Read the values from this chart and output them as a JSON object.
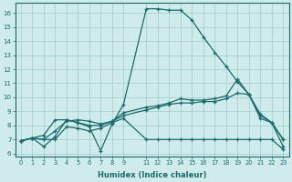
{
  "xlabel": "Humidex (Indice chaleur)",
  "xlim": [
    -0.5,
    23.5
  ],
  "ylim": [
    5.8,
    16.7
  ],
  "yticks": [
    6,
    7,
    8,
    9,
    10,
    11,
    12,
    13,
    14,
    15,
    16
  ],
  "xtick_positions": [
    0,
    1,
    2,
    3,
    4,
    5,
    6,
    7,
    8,
    9,
    11,
    12,
    13,
    14,
    15,
    16,
    17,
    18,
    19,
    20,
    21,
    22,
    23
  ],
  "xtick_labels": [
    "0",
    "1",
    "2",
    "3",
    "4",
    "5",
    "6",
    "7",
    "8",
    "9",
    "11",
    "12",
    "13",
    "14",
    "15",
    "16",
    "17",
    "18",
    "19",
    "20",
    "21",
    "22",
    "23"
  ],
  "bg_color": "#d0ebeb",
  "grid_color": "#a0cccc",
  "line_color": "#1a6b6b",
  "lines": [
    {
      "x": [
        0,
        1,
        2,
        3,
        4,
        5,
        6,
        7,
        8,
        9,
        11,
        12,
        13,
        14,
        15,
        16,
        17,
        18,
        19,
        20,
        21,
        22,
        23
      ],
      "y": [
        6.9,
        7.1,
        6.5,
        7.2,
        8.4,
        8.2,
        7.9,
        6.2,
        8.1,
        9.5,
        16.3,
        16.3,
        16.2,
        16.2,
        15.5,
        14.3,
        13.2,
        12.2,
        11.1,
        10.2,
        8.5,
        8.2,
        7.0
      ]
    },
    {
      "x": [
        0,
        1,
        2,
        3,
        4,
        5,
        6,
        7,
        8,
        9,
        11,
        12,
        13,
        14,
        15,
        16,
        17,
        18,
        19,
        20,
        21,
        22,
        23
      ],
      "y": [
        6.9,
        7.1,
        7.0,
        7.6,
        8.3,
        8.4,
        8.3,
        8.1,
        8.3,
        8.7,
        9.1,
        9.3,
        9.5,
        9.6,
        9.6,
        9.7,
        9.7,
        9.9,
        10.3,
        10.2,
        8.7,
        8.2,
        6.5
      ]
    },
    {
      "x": [
        0,
        1,
        2,
        3,
        4,
        5,
        6,
        7,
        8,
        9,
        11,
        12,
        13,
        14,
        15,
        16,
        17,
        18,
        19,
        20,
        21,
        22,
        23
      ],
      "y": [
        6.9,
        7.1,
        7.3,
        8.4,
        8.4,
        8.2,
        8.0,
        8.0,
        8.3,
        8.9,
        9.3,
        9.4,
        9.6,
        9.9,
        9.8,
        9.8,
        9.9,
        10.1,
        11.3,
        10.2,
        8.8,
        8.2,
        7.0
      ]
    },
    {
      "x": [
        0,
        1,
        2,
        3,
        4,
        5,
        6,
        7,
        8,
        9,
        11,
        12,
        13,
        14,
        15,
        16,
        17,
        18,
        19,
        20,
        21,
        22,
        23
      ],
      "y": [
        6.9,
        7.1,
        7.0,
        7.0,
        7.9,
        7.8,
        7.6,
        7.8,
        8.2,
        8.5,
        7.0,
        7.0,
        7.0,
        7.0,
        7.0,
        7.0,
        7.0,
        7.0,
        7.0,
        7.0,
        7.0,
        7.0,
        6.3
      ]
    }
  ]
}
